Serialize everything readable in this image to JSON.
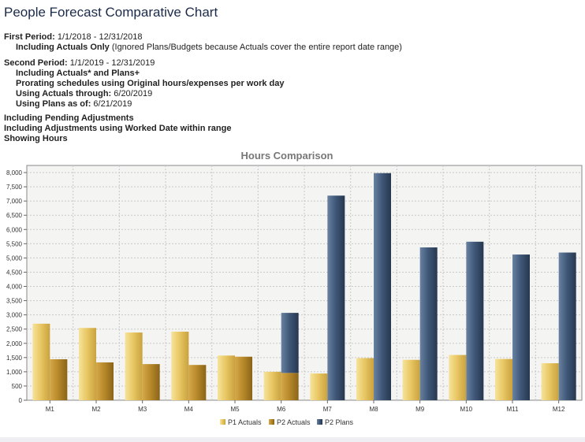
{
  "page": {
    "title": "People Forecast Comparative Chart"
  },
  "first_period": {
    "label": "First Period:",
    "range": "1/1/2018 - 12/31/2018",
    "including_label": "Including Actuals Only",
    "including_note": "(Ignored Plans/Budgets because Actuals cover the entire report date range)"
  },
  "second_period": {
    "label": "Second Period:",
    "range": "1/1/2019 - 12/31/2019",
    "lines": [
      "Including Actuals* and Plans+",
      "Prorating schedules using Original hours/expenses per work day"
    ],
    "actuals_through_label": "Using Actuals through:",
    "actuals_through_value": "6/20/2019",
    "plans_as_of_label": "Using Plans as of:",
    "plans_as_of_value": "6/21/2019"
  },
  "general": {
    "lines": [
      "Including Pending Adjustments",
      "Including Adjustments using Worked Date within range",
      "Showing Hours"
    ]
  },
  "colors": {
    "p1_actuals": "#e8c660",
    "p2_actuals": "#b88a28",
    "p2_plans": "#3f5675",
    "plot_bg": "#f4f4f2",
    "grid": "#c8c8c8"
  },
  "chart_data": {
    "type": "bar",
    "title": "Hours Comparison",
    "categories": [
      "M1",
      "M2",
      "M3",
      "M4",
      "M5",
      "M6",
      "M7",
      "M8",
      "M9",
      "M10",
      "M11",
      "M12"
    ],
    "series": [
      {
        "name": "P1 Actuals",
        "values": [
          2690,
          2540,
          2380,
          2410,
          1570,
          1000,
          940,
          1480,
          1420,
          1590,
          1450,
          1300
        ]
      },
      {
        "name": "P2 Actuals",
        "values": [
          1440,
          1330,
          1270,
          1240,
          1530,
          960,
          null,
          null,
          null,
          null,
          null,
          null
        ]
      },
      {
        "name": "P2 Plans",
        "values": [
          null,
          null,
          null,
          null,
          null,
          3070,
          7190,
          7980,
          5370,
          5570,
          5120,
          5190
        ]
      }
    ],
    "stack_p2": true,
    "ylim": [
      0,
      8250
    ],
    "yticks": [
      "0",
      "500",
      "1,000",
      "1,500",
      "2,000",
      "2,500",
      "3,000",
      "3,500",
      "4,000",
      "4,500",
      "5,000",
      "5,500",
      "6,000",
      "6,500",
      "7,000",
      "7,500",
      "8,000"
    ],
    "grid": true,
    "legend_position": "bottom-center"
  }
}
